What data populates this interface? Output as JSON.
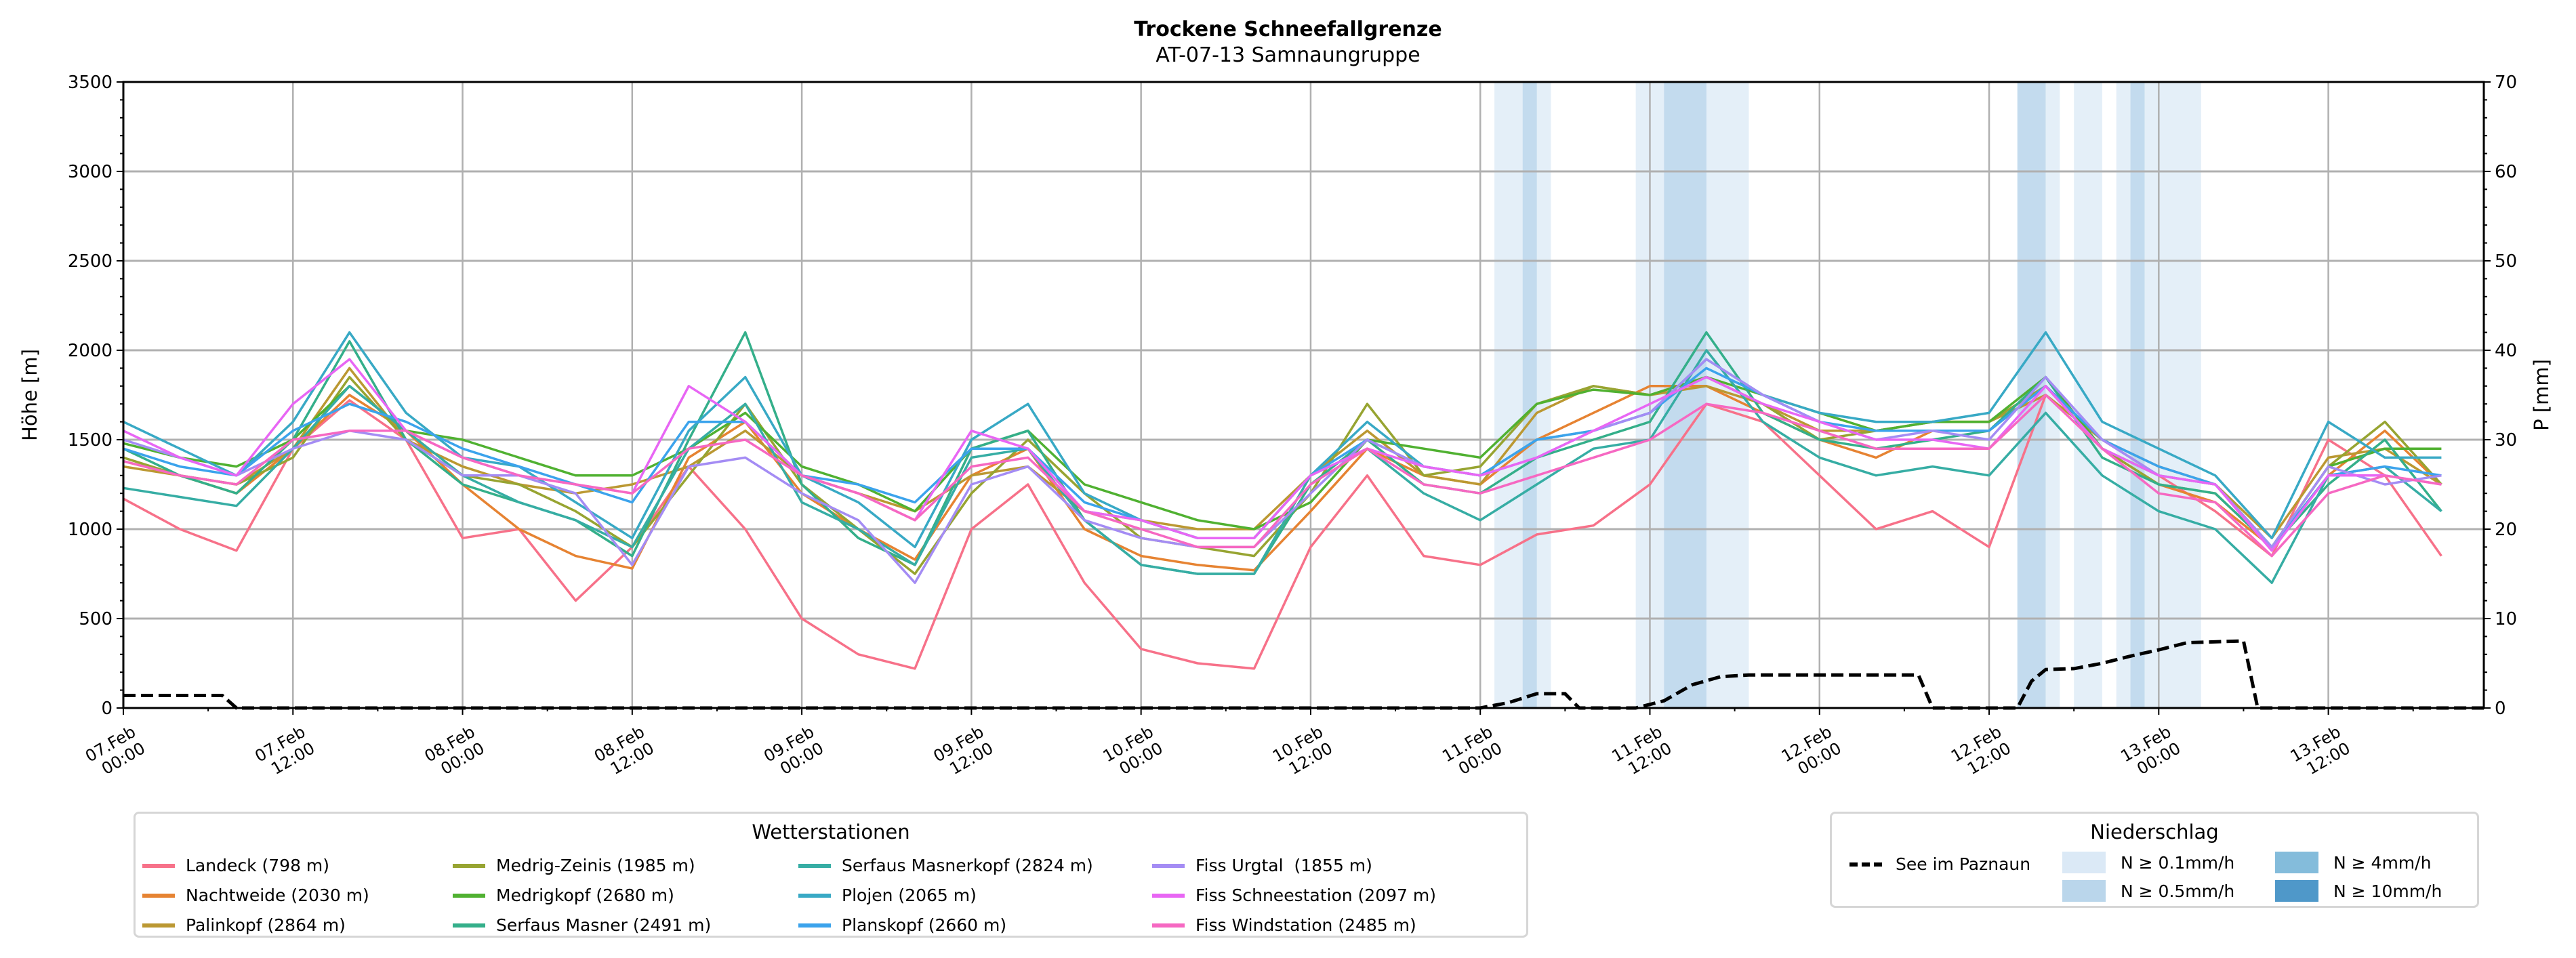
{
  "title": "Trockene Schneefallgrenze",
  "subtitle": "AT-07-13 Samnaungruppe",
  "legend_stations_title": "Wetterstationen",
  "legend_precip_title": "Niederschlag",
  "chart_data": {
    "type": "line",
    "title": "Trockene Schneefallgrenze",
    "subtitle": "AT-07-13 Samnaungruppe",
    "ylabel": "Höhe [m]",
    "y2label": "P [mm]",
    "ylim": [
      0,
      3500
    ],
    "y2lim": [
      0,
      70
    ],
    "yticks": [
      0,
      500,
      1000,
      1500,
      2000,
      2500,
      3000,
      3500
    ],
    "y2ticks": [
      0,
      10,
      20,
      30,
      40,
      50,
      60,
      70
    ],
    "xlim_hours": [
      0,
      167
    ],
    "xtick_hours": [
      0,
      12,
      24,
      36,
      48,
      60,
      72,
      84,
      96,
      108,
      120,
      132,
      144,
      156
    ],
    "xtick_labels": [
      [
        "07.Feb",
        "00:00"
      ],
      [
        "07.Feb",
        "12:00"
      ],
      [
        "08.Feb",
        "00:00"
      ],
      [
        "08.Feb",
        "12:00"
      ],
      [
        "09.Feb",
        "00:00"
      ],
      [
        "09.Feb",
        "12:00"
      ],
      [
        "10.Feb",
        "00:00"
      ],
      [
        "10.Feb",
        "12:00"
      ],
      [
        "11.Feb",
        "00:00"
      ],
      [
        "11.Feb",
        "12:00"
      ],
      [
        "12.Feb",
        "00:00"
      ],
      [
        "12.Feb",
        "12:00"
      ],
      [
        "13.Feb",
        "00:00"
      ],
      [
        "13.Feb",
        "12:00"
      ]
    ],
    "grid": true,
    "x_hours": [
      0,
      4,
      8,
      12,
      16,
      20,
      24,
      28,
      32,
      36,
      40,
      44,
      48,
      52,
      56,
      60,
      64,
      68,
      72,
      76,
      80,
      84,
      88,
      92,
      96,
      100,
      104,
      108,
      112,
      116,
      120,
      124,
      128,
      132,
      136,
      140,
      144,
      148,
      152,
      156,
      160,
      164
    ],
    "series": [
      {
        "name": "Landeck (798 m)",
        "color": "#f77189",
        "values": [
          1170,
          1000,
          880,
          1450,
          1720,
          1500,
          950,
          1000,
          600,
          900,
          1350,
          1000,
          500,
          300,
          220,
          1000,
          1250,
          700,
          330,
          250,
          220,
          900,
          1300,
          850,
          800,
          970,
          1020,
          1250,
          1700,
          1600,
          1300,
          1000,
          1100,
          900,
          1750,
          1500,
          1300,
          1100,
          850,
          1500,
          1300,
          850
        ]
      },
      {
        "name": "Nachtweide (2030 m)",
        "color": "#e68332",
        "values": [
          1380,
          1300,
          1200,
          1450,
          1750,
          1550,
          1250,
          1000,
          850,
          780,
          1400,
          1600,
          1200,
          1000,
          830,
          1300,
          1450,
          1000,
          850,
          800,
          770,
          1100,
          1450,
          1300,
          1250,
          1500,
          1650,
          1800,
          1800,
          1650,
          1500,
          1400,
          1550,
          1550,
          1800,
          1450,
          1250,
          1150,
          900,
          1300,
          1550,
          1250
        ]
      },
      {
        "name": "Palinkopf (2864 m)",
        "color": "#bb9832",
        "values": [
          1350,
          1300,
          1250,
          1450,
          1900,
          1500,
          1350,
          1250,
          1200,
          1250,
          1350,
          1550,
          1300,
          1200,
          1100,
          1300,
          1350,
          1100,
          1050,
          1000,
          1000,
          1300,
          1550,
          1300,
          1250,
          1650,
          1800,
          1750,
          1800,
          1700,
          1550,
          1550,
          1600,
          1600,
          1750,
          1500,
          1350,
          1250,
          950,
          1400,
          1450,
          1250
        ]
      },
      {
        "name": "Medrig-Zeinis (1985 m)",
        "color": "#97a431",
        "values": [
          1400,
          1300,
          1250,
          1400,
          1850,
          1500,
          1300,
          1250,
          1100,
          900,
          1300,
          1700,
          1250,
          1000,
          750,
          1200,
          1500,
          1200,
          950,
          900,
          850,
          1200,
          1700,
          1300,
          1350,
          1700,
          1800,
          1750,
          1850,
          1700,
          1500,
          1550,
          1600,
          1600,
          1800,
          1450,
          1250,
          1200,
          900,
          1350,
          1600,
          1250
        ]
      },
      {
        "name": "Medrigkopf (2680 m)",
        "color": "#50b131",
        "values": [
          1480,
          1400,
          1350,
          1500,
          1800,
          1550,
          1500,
          1400,
          1300,
          1300,
          1450,
          1650,
          1350,
          1250,
          1100,
          1450,
          1550,
          1250,
          1150,
          1050,
          1000,
          1150,
          1500,
          1450,
          1400,
          1700,
          1780,
          1750,
          1850,
          1750,
          1650,
          1550,
          1600,
          1600,
          1850,
          1450,
          1300,
          1250,
          900,
          1350,
          1450,
          1450
        ]
      },
      {
        "name": "Serfaus Masner (2491 m)",
        "color": "#34af8a",
        "values": [
          1450,
          1300,
          1200,
          1500,
          2050,
          1500,
          1250,
          1150,
          1050,
          850,
          1500,
          2100,
          1250,
          950,
          800,
          1450,
          1550,
          1050,
          800,
          750,
          750,
          1250,
          1500,
          1250,
          1200,
          1400,
          1500,
          1600,
          2100,
          1650,
          1500,
          1450,
          1500,
          1550,
          1850,
          1400,
          1250,
          1200,
          900,
          1250,
          1500,
          1100
        ]
      },
      {
        "name": "Serfaus Masnerkopf (2824 m)",
        "color": "#36ada4",
        "values": [
          1230,
          1180,
          1130,
          1450,
          1800,
          1550,
          1300,
          1150,
          1050,
          900,
          1450,
          1700,
          1150,
          1000,
          800,
          1400,
          1450,
          1050,
          800,
          750,
          750,
          1300,
          1450,
          1200,
          1050,
          1250,
          1450,
          1500,
          2000,
          1600,
          1400,
          1300,
          1350,
          1300,
          1650,
          1300,
          1100,
          1000,
          700,
          1300,
          1350,
          1100
        ]
      },
      {
        "name": "Plojen (2065 m)",
        "color": "#38a9c5",
        "values": [
          1600,
          1450,
          1300,
          1600,
          2100,
          1650,
          1400,
          1350,
          1150,
          950,
          1550,
          1850,
          1300,
          1150,
          900,
          1500,
          1700,
          1200,
          1050,
          950,
          950,
          1300,
          1600,
          1350,
          1300,
          1500,
          1550,
          1650,
          1950,
          1750,
          1650,
          1600,
          1600,
          1650,
          2100,
          1600,
          1450,
          1300,
          950,
          1600,
          1400,
          1400
        ]
      },
      {
        "name": "Planskopf (2660 m)",
        "color": "#3ba3ec",
        "values": [
          1450,
          1350,
          1300,
          1550,
          1700,
          1600,
          1450,
          1350,
          1250,
          1150,
          1600,
          1600,
          1300,
          1250,
          1150,
          1450,
          1450,
          1150,
          1050,
          950,
          950,
          1300,
          1500,
          1350,
          1300,
          1500,
          1550,
          1650,
          1900,
          1750,
          1600,
          1550,
          1550,
          1550,
          1800,
          1500,
          1350,
          1250,
          900,
          1300,
          1350,
          1300
        ]
      },
      {
        "name": "Fiss Urgtal  (1855 m)",
        "color": "#a48cf4",
        "values": [
          1500,
          1400,
          1300,
          1450,
          1550,
          1500,
          1300,
          1300,
          1200,
          800,
          1350,
          1400,
          1200,
          1050,
          700,
          1250,
          1350,
          1050,
          950,
          900,
          900,
          1200,
          1500,
          1350,
          1300,
          1400,
          1550,
          1650,
          1950,
          1750,
          1600,
          1500,
          1550,
          1500,
          1850,
          1500,
          1300,
          1250,
          900,
          1350,
          1250,
          1300
        ]
      },
      {
        "name": "Fiss Schneestation (2097 m)",
        "color": "#e866f4",
        "values": [
          1550,
          1400,
          1300,
          1700,
          1950,
          1550,
          1400,
          1300,
          1250,
          1200,
          1800,
          1600,
          1300,
          1200,
          1050,
          1550,
          1450,
          1100,
          1050,
          950,
          950,
          1300,
          1450,
          1350,
          1300,
          1400,
          1550,
          1700,
          1850,
          1700,
          1600,
          1500,
          1500,
          1450,
          1800,
          1450,
          1300,
          1250,
          880,
          1300,
          1300,
          1250
        ]
      },
      {
        "name": "Fiss Windstation (2485 m)",
        "color": "#f668c2",
        "values": [
          1380,
          1300,
          1250,
          1500,
          1550,
          1550,
          1400,
          1300,
          1250,
          1200,
          1450,
          1500,
          1300,
          1200,
          1050,
          1350,
          1400,
          1100,
          1000,
          900,
          900,
          1250,
          1450,
          1250,
          1200,
          1300,
          1400,
          1500,
          1700,
          1650,
          1550,
          1450,
          1450,
          1450,
          1750,
          1450,
          1200,
          1150,
          850,
          1200,
          1300,
          1250
        ]
      }
    ],
    "lake_series": {
      "name": "See im Paznaun",
      "color": "#000000",
      "points_hours_mm": [
        [
          0,
          1.4
        ],
        [
          7,
          1.4
        ],
        [
          8,
          0
        ],
        [
          96,
          0
        ],
        [
          98,
          0.6
        ],
        [
          100,
          1.6
        ],
        [
          102,
          1.6
        ],
        [
          103,
          0
        ],
        [
          107,
          0
        ],
        [
          109,
          0.8
        ],
        [
          111,
          2.6
        ],
        [
          113,
          3.5
        ],
        [
          115,
          3.7
        ],
        [
          127,
          3.7
        ],
        [
          128,
          0
        ],
        [
          134,
          0
        ],
        [
          135,
          3
        ],
        [
          136,
          4.3
        ],
        [
          138,
          4.4
        ],
        [
          140,
          5
        ],
        [
          142,
          5.8
        ],
        [
          144,
          6.5
        ],
        [
          146,
          7.3
        ],
        [
          150,
          7.5
        ],
        [
          151,
          0
        ],
        [
          167,
          0
        ]
      ]
    },
    "precip_levels": [
      {
        "label": "N ≥ 0.1mm/h",
        "color": "#dbe9f6"
      },
      {
        "label": "N ≥ 0.5mm/h",
        "color": "#bad6eb"
      },
      {
        "label": "N ≥ 4mm/h",
        "color": "#84bcdb"
      },
      {
        "label": "N ≥ 10mm/h",
        "color": "#4f98c9"
      }
    ],
    "precip_bands": [
      {
        "start": 97,
        "end": 101,
        "level": 0
      },
      {
        "start": 99,
        "end": 100,
        "level": 1
      },
      {
        "start": 107,
        "end": 115,
        "level": 0
      },
      {
        "start": 109,
        "end": 112,
        "level": 1
      },
      {
        "start": 134,
        "end": 137,
        "level": 0
      },
      {
        "start": 134,
        "end": 136,
        "level": 1
      },
      {
        "start": 138,
        "end": 140,
        "level": 0
      },
      {
        "start": 141,
        "end": 147,
        "level": 0
      },
      {
        "start": 142,
        "end": 143,
        "level": 1
      }
    ],
    "legend_placement": "bottom"
  }
}
